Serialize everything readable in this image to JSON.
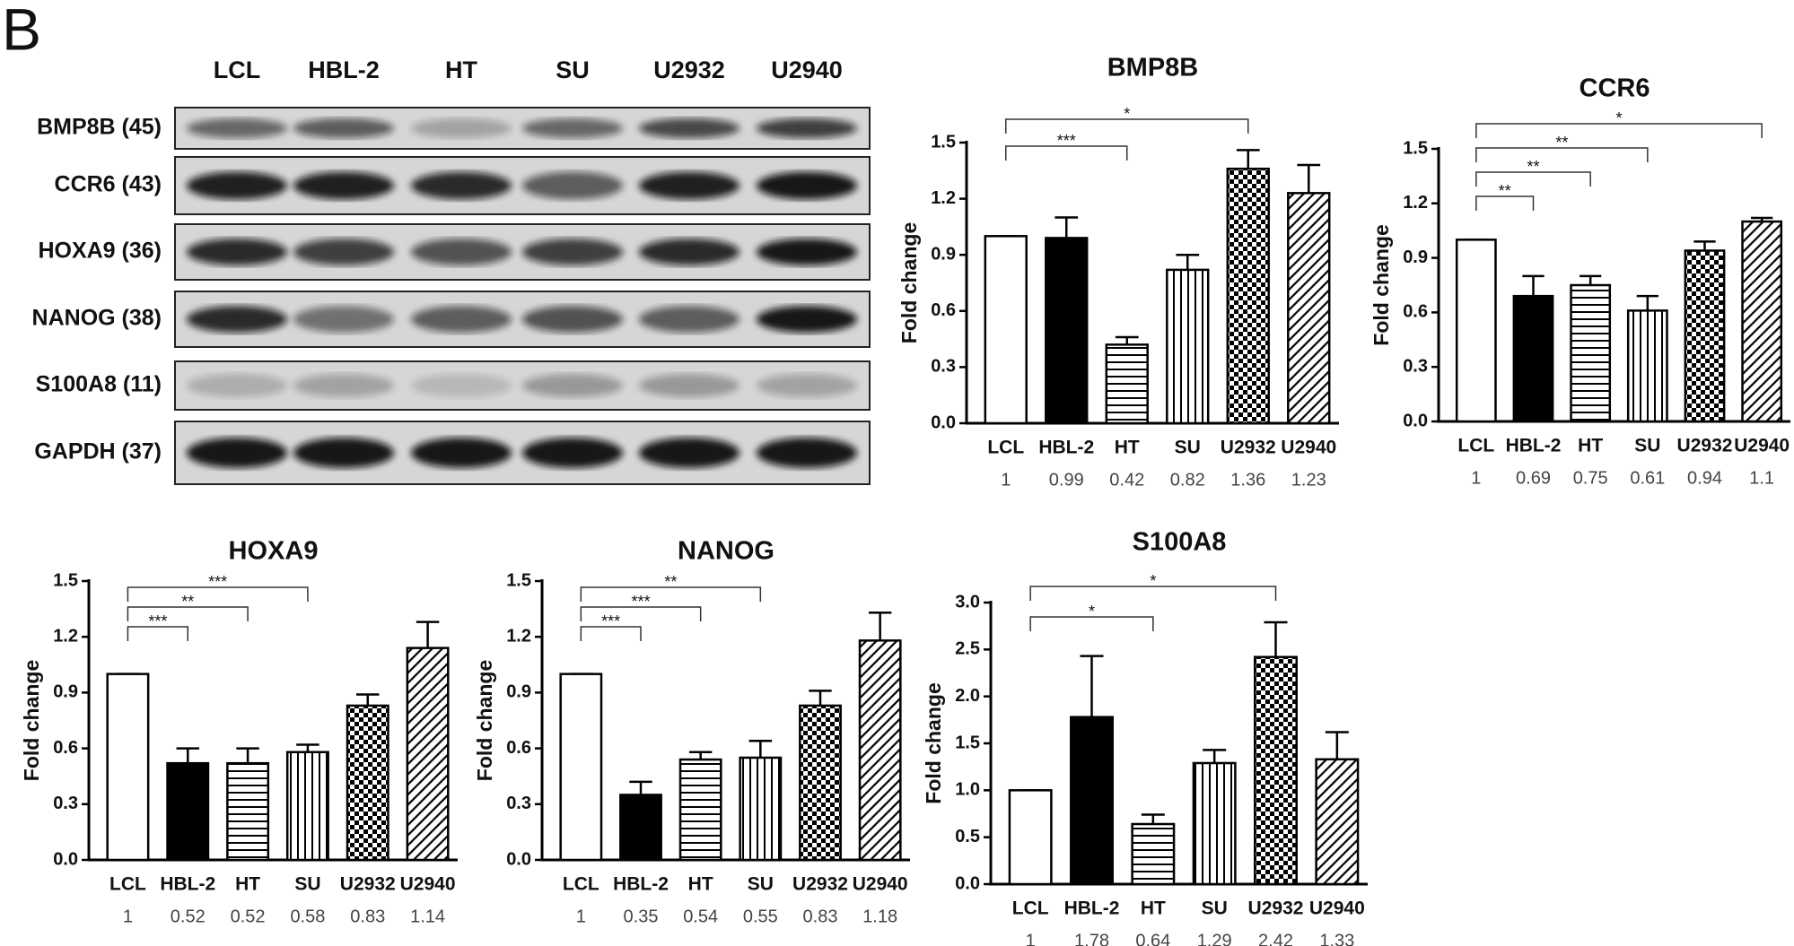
{
  "panel_label": "B",
  "blot": {
    "columns": [
      "LCL",
      "HBL-2",
      "HT",
      "SU",
      "U2932",
      "U2940"
    ],
    "rows": [
      "BMP8B (45)",
      "CCR6 (43)",
      "HOXA9 (36)",
      "NANOG (38)",
      "S100A8 (11)",
      "GAPDH (37)"
    ]
  },
  "chart_data": [
    {
      "type": "bar",
      "title": "BMP8B",
      "ylabel": "Fold change",
      "color": "#000000",
      "categories": [
        "LCL",
        "HBL-2",
        "HT",
        "SU",
        "U2932",
        "U2940"
      ],
      "fills": [
        "none",
        "solid",
        "horizontal",
        "vertical",
        "checker",
        "diagonal"
      ],
      "values": [
        1,
        0.99,
        0.42,
        0.82,
        1.36,
        1.23
      ],
      "errors": [
        0,
        0.11,
        0.04,
        0.08,
        0.1,
        0.15
      ],
      "ylim": [
        0,
        1.5
      ],
      "yticks": [
        {
          "value": 0,
          "label": "0.0"
        },
        0.3,
        0.6,
        0.9,
        1.2,
        1.5
      ],
      "annotations": [
        {
          "between": [
            "LCL",
            "HT"
          ],
          "text": "***"
        },
        {
          "between": [
            "LCL",
            "U2932"
          ],
          "text": "*"
        }
      ]
    },
    {
      "type": "bar",
      "title": "CCR6",
      "ylabel": "Fold change",
      "color": "#000000",
      "categories": [
        "LCL",
        "HBL-2",
        "HT",
        "SU",
        "U2932",
        "U2940"
      ],
      "fills": [
        "none",
        "solid",
        "horizontal",
        "vertical",
        "checker",
        "diagonal"
      ],
      "values": [
        1,
        0.69,
        0.75,
        0.61,
        0.94,
        1.1
      ],
      "errors": [
        0,
        0.11,
        0.05,
        0.08,
        0.05,
        0.02
      ],
      "ylim": [
        0,
        1.5
      ],
      "yticks": [
        {
          "value": 0,
          "label": "0.0"
        },
        0.3,
        0.6,
        0.9,
        1.2,
        1.5
      ],
      "annotations": [
        {
          "between": [
            "LCL",
            "HBL-2"
          ],
          "text": "**"
        },
        {
          "between": [
            "LCL",
            "HT"
          ],
          "text": "**"
        },
        {
          "between": [
            "LCL",
            "SU"
          ],
          "text": "**"
        },
        {
          "between": [
            "LCL",
            "U2940"
          ],
          "text": "*"
        }
      ]
    },
    {
      "type": "bar",
      "title": "HOXA9",
      "ylabel": "Fold change",
      "color": "#000000",
      "categories": [
        "LCL",
        "HBL-2",
        "HT",
        "SU",
        "U2932",
        "U2940"
      ],
      "fills": [
        "none",
        "solid",
        "horizontal",
        "vertical",
        "checker",
        "diagonal"
      ],
      "values": [
        1,
        0.52,
        0.52,
        0.58,
        0.83,
        1.14
      ],
      "errors": [
        0,
        0.08,
        0.08,
        0.04,
        0.06,
        0.14
      ],
      "ylim": [
        0,
        1.5
      ],
      "yticks": [
        {
          "value": 0,
          "label": "0.0"
        },
        0.3,
        0.6,
        0.9,
        1.2,
        1.5
      ],
      "annotations": [
        {
          "between": [
            "LCL",
            "HBL-2"
          ],
          "text": "***"
        },
        {
          "between": [
            "LCL",
            "HT"
          ],
          "text": "**"
        },
        {
          "between": [
            "LCL",
            "SU"
          ],
          "text": "***"
        }
      ]
    },
    {
      "type": "bar",
      "title": "NANOG",
      "ylabel": "Fold change",
      "color": "#000000",
      "categories": [
        "LCL",
        "HBL-2",
        "HT",
        "SU",
        "U2932",
        "U2940"
      ],
      "fills": [
        "none",
        "solid",
        "horizontal",
        "vertical",
        "checker",
        "diagonal"
      ],
      "values": [
        1,
        0.35,
        0.54,
        0.55,
        0.83,
        1.18
      ],
      "errors": [
        0,
        0.07,
        0.04,
        0.09,
        0.08,
        0.15
      ],
      "ylim": [
        0,
        1.5
      ],
      "yticks": [
        {
          "value": 0,
          "label": "0.0"
        },
        0.3,
        0.6,
        0.9,
        1.2,
        1.5
      ],
      "annotations": [
        {
          "between": [
            "LCL",
            "HBL-2"
          ],
          "text": "***"
        },
        {
          "between": [
            "LCL",
            "HT"
          ],
          "text": "***"
        },
        {
          "between": [
            "LCL",
            "SU"
          ],
          "text": "**"
        }
      ]
    },
    {
      "type": "bar",
      "title": "S100A8",
      "ylabel": "Fold change",
      "color": "#000000",
      "categories": [
        "LCL",
        "HBL-2",
        "HT",
        "SU",
        "U2932",
        "U2940"
      ],
      "fills": [
        "none",
        "solid",
        "horizontal",
        "vertical",
        "checker",
        "diagonal"
      ],
      "values": [
        1,
        1.78,
        0.64,
        1.29,
        2.42,
        1.33
      ],
      "errors": [
        0,
        0.65,
        0.1,
        0.14,
        0.37,
        0.29
      ],
      "ylim": [
        0,
        3
      ],
      "yticks": [
        {
          "value": 0,
          "label": "0.0"
        },
        0.5,
        {
          "value": 1,
          "label": "1.0"
        },
        1.5,
        {
          "value": 2,
          "label": "2.0"
        },
        2.5,
        {
          "value": 3,
          "label": "3.0"
        }
      ],
      "annotations": [
        {
          "between": [
            "LCL",
            "HT"
          ],
          "text": "*"
        },
        {
          "between": [
            "LCL",
            "U2932"
          ],
          "text": "*"
        }
      ]
    }
  ]
}
